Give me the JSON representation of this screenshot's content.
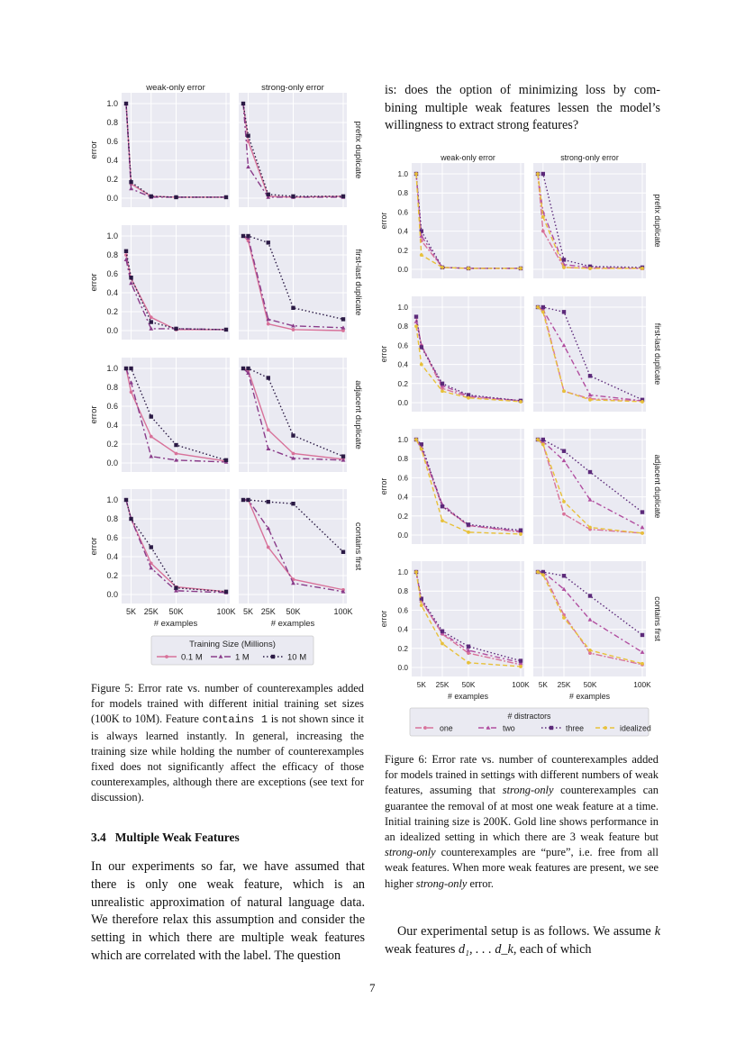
{
  "figure5": {
    "col_titles": [
      "weak-only error",
      "strong-only error"
    ],
    "row_labels": [
      "prefix duplicate",
      "first-last duplicate",
      "adjacent duplicate",
      "contains first"
    ],
    "ylabel": "error",
    "xlabel": "# examples",
    "legend_title": "Training Size (Millions)",
    "legend": [
      "0.1 M",
      "1 M",
      "10 M"
    ]
  },
  "figure6": {
    "col_titles": [
      "weak-only error",
      "strong-only error"
    ],
    "row_labels": [
      "prefix duplicate",
      "first-last duplicate",
      "adjacent duplicate",
      "contains first"
    ],
    "ylabel": "error",
    "xlabel": "# examples",
    "legend_title": "# distractors",
    "legend": [
      "one",
      "two",
      "three",
      "idealized"
    ]
  },
  "chart_data": [
    {
      "type": "line",
      "x_ticks": [
        "5K",
        "25K",
        "50K",
        "100K"
      ],
      "x": [
        0,
        5000,
        25000,
        50000,
        100000
      ],
      "ylim": [
        0,
        1
      ],
      "y_ticks": [
        "0.0",
        "0.2",
        "0.4",
        "0.6",
        "0.8",
        "1.0"
      ],
      "panels": [
        {
          "row": "prefix duplicate",
          "col": "weak-only error",
          "series": [
            {
              "name": "0.1 M",
              "values": [
                1.0,
                0.15,
                0.02,
                0.01,
                0.01
              ]
            },
            {
              "name": "1 M",
              "values": [
                1.0,
                0.1,
                0.01,
                0.01,
                0.01
              ]
            },
            {
              "name": "10 M",
              "values": [
                1.0,
                0.17,
                0.02,
                0.01,
                0.01
              ]
            }
          ]
        },
        {
          "row": "prefix duplicate",
          "col": "strong-only error",
          "series": [
            {
              "name": "0.1 M",
              "values": [
                1.0,
                0.6,
                0.02,
                0.01,
                0.02
              ]
            },
            {
              "name": "1 M",
              "values": [
                1.0,
                0.33,
                0.01,
                0.01,
                0.01
              ]
            },
            {
              "name": "10 M",
              "values": [
                1.0,
                0.66,
                0.04,
                0.02,
                0.02
              ]
            }
          ]
        },
        {
          "row": "first-last duplicate",
          "col": "weak-only error",
          "series": [
            {
              "name": "0.1 M",
              "values": [
                0.8,
                0.55,
                0.14,
                0.01,
                0.01
              ]
            },
            {
              "name": "1 M",
              "values": [
                0.75,
                0.5,
                0.02,
                0.02,
                0.01
              ]
            },
            {
              "name": "10 M",
              "values": [
                0.84,
                0.56,
                0.09,
                0.02,
                0.01
              ]
            }
          ]
        },
        {
          "row": "first-last duplicate",
          "col": "strong-only error",
          "series": [
            {
              "name": "0.1 M",
              "values": [
                1.0,
                0.95,
                0.07,
                0.01,
                0.0
              ]
            },
            {
              "name": "1 M",
              "values": [
                1.0,
                0.98,
                0.12,
                0.05,
                0.03
              ]
            },
            {
              "name": "10 M",
              "values": [
                1.0,
                1.0,
                0.93,
                0.24,
                0.12
              ]
            }
          ]
        },
        {
          "row": "adjacent duplicate",
          "col": "weak-only error",
          "series": [
            {
              "name": "0.1 M",
              "values": [
                1.0,
                0.75,
                0.28,
                0.1,
                0.02
              ]
            },
            {
              "name": "1 M",
              "values": [
                1.0,
                0.85,
                0.07,
                0.03,
                0.01
              ]
            },
            {
              "name": "10 M",
              "values": [
                1.0,
                1.0,
                0.49,
                0.19,
                0.03
              ]
            }
          ]
        },
        {
          "row": "adjacent duplicate",
          "col": "strong-only error",
          "series": [
            {
              "name": "0.1 M",
              "values": [
                1.0,
                0.98,
                0.35,
                0.1,
                0.04
              ]
            },
            {
              "name": "1 M",
              "values": [
                1.0,
                0.95,
                0.15,
                0.05,
                0.03
              ]
            },
            {
              "name": "10 M",
              "values": [
                1.0,
                1.0,
                0.9,
                0.29,
                0.07
              ]
            }
          ]
        },
        {
          "row": "contains first",
          "col": "weak-only error",
          "series": [
            {
              "name": "0.1 M",
              "values": [
                1.0,
                0.8,
                0.33,
                0.08,
                0.03
              ]
            },
            {
              "name": "1 M",
              "values": [
                1.0,
                0.8,
                0.28,
                0.04,
                0.02
              ]
            },
            {
              "name": "10 M",
              "values": [
                1.0,
                0.8,
                0.5,
                0.07,
                0.03
              ]
            }
          ]
        },
        {
          "row": "contains first",
          "col": "strong-only error",
          "series": [
            {
              "name": "0.1 M",
              "values": [
                1.0,
                1.0,
                0.5,
                0.16,
                0.05
              ]
            },
            {
              "name": "1 M",
              "values": [
                1.0,
                1.0,
                0.7,
                0.12,
                0.03
              ]
            },
            {
              "name": "10 M",
              "values": [
                1.0,
                1.0,
                0.98,
                0.96,
                0.45
              ]
            }
          ]
        }
      ]
    },
    {
      "type": "line",
      "x_ticks": [
        "5K",
        "25K",
        "50K",
        "100K"
      ],
      "x": [
        0,
        5000,
        25000,
        50000,
        100000
      ],
      "ylim": [
        0,
        1
      ],
      "y_ticks": [
        "0.0",
        "0.2",
        "0.4",
        "0.6",
        "0.8",
        "1.0"
      ],
      "panels": [
        {
          "row": "prefix duplicate",
          "col": "weak-only error",
          "series": [
            {
              "name": "one",
              "values": [
                1.0,
                0.3,
                0.02,
                0.01,
                0.01
              ]
            },
            {
              "name": "two",
              "values": [
                1.0,
                0.35,
                0.02,
                0.01,
                0.01
              ]
            },
            {
              "name": "three",
              "values": [
                1.0,
                0.4,
                0.02,
                0.01,
                0.01
              ]
            },
            {
              "name": "idealized",
              "values": [
                1.0,
                0.15,
                0.02,
                0.01,
                0.01
              ]
            }
          ]
        },
        {
          "row": "prefix duplicate",
          "col": "strong-only error",
          "series": [
            {
              "name": "one",
              "values": [
                1.0,
                0.4,
                0.02,
                0.01,
                0.01
              ]
            },
            {
              "name": "two",
              "values": [
                1.0,
                0.6,
                0.05,
                0.02,
                0.01
              ]
            },
            {
              "name": "three",
              "values": [
                1.0,
                1.0,
                0.1,
                0.03,
                0.02
              ]
            },
            {
              "name": "idealized",
              "values": [
                1.0,
                0.55,
                0.02,
                0.01,
                0.01
              ]
            }
          ]
        },
        {
          "row": "first-last duplicate",
          "col": "weak-only error",
          "series": [
            {
              "name": "one",
              "values": [
                0.9,
                0.6,
                0.15,
                0.06,
                0.02
              ]
            },
            {
              "name": "two",
              "values": [
                0.85,
                0.6,
                0.18,
                0.07,
                0.02
              ]
            },
            {
              "name": "three",
              "values": [
                0.9,
                0.58,
                0.2,
                0.08,
                0.02
              ]
            },
            {
              "name": "idealized",
              "values": [
                0.8,
                0.4,
                0.12,
                0.05,
                0.01
              ]
            }
          ]
        },
        {
          "row": "first-last duplicate",
          "col": "strong-only error",
          "series": [
            {
              "name": "one",
              "values": [
                1.0,
                0.98,
                0.12,
                0.04,
                0.02
              ]
            },
            {
              "name": "two",
              "values": [
                1.0,
                0.97,
                0.6,
                0.08,
                0.02
              ]
            },
            {
              "name": "three",
              "values": [
                1.0,
                1.0,
                0.95,
                0.28,
                0.03
              ]
            },
            {
              "name": "idealized",
              "values": [
                1.0,
                0.95,
                0.12,
                0.03,
                0.01
              ]
            }
          ]
        },
        {
          "row": "adjacent duplicate",
          "col": "weak-only error",
          "series": [
            {
              "name": "one",
              "values": [
                1.0,
                0.9,
                0.3,
                0.1,
                0.03
              ]
            },
            {
              "name": "two",
              "values": [
                1.0,
                0.92,
                0.32,
                0.1,
                0.04
              ]
            },
            {
              "name": "three",
              "values": [
                1.0,
                0.95,
                0.3,
                0.11,
                0.05
              ]
            },
            {
              "name": "idealized",
              "values": [
                1.0,
                0.9,
                0.15,
                0.03,
                0.01
              ]
            }
          ]
        },
        {
          "row": "adjacent duplicate",
          "col": "strong-only error",
          "series": [
            {
              "name": "one",
              "values": [
                1.0,
                0.95,
                0.22,
                0.06,
                0.02
              ]
            },
            {
              "name": "two",
              "values": [
                1.0,
                0.98,
                0.78,
                0.37,
                0.08
              ]
            },
            {
              "name": "three",
              "values": [
                1.0,
                1.0,
                0.88,
                0.66,
                0.24
              ]
            },
            {
              "name": "idealized",
              "values": [
                1.0,
                0.95,
                0.35,
                0.08,
                0.02
              ]
            }
          ]
        },
        {
          "row": "contains first",
          "col": "weak-only error",
          "series": [
            {
              "name": "one",
              "values": [
                1.0,
                0.7,
                0.35,
                0.15,
                0.03
              ]
            },
            {
              "name": "two",
              "values": [
                1.0,
                0.7,
                0.36,
                0.18,
                0.05
              ]
            },
            {
              "name": "three",
              "values": [
                1.0,
                0.72,
                0.38,
                0.22,
                0.07
              ]
            },
            {
              "name": "idealized",
              "values": [
                1.0,
                0.65,
                0.25,
                0.05,
                0.01
              ]
            }
          ]
        },
        {
          "row": "contains first",
          "col": "strong-only error",
          "series": [
            {
              "name": "one",
              "values": [
                1.0,
                1.0,
                0.55,
                0.15,
                0.03
              ]
            },
            {
              "name": "two",
              "values": [
                1.0,
                1.0,
                0.82,
                0.5,
                0.16
              ]
            },
            {
              "name": "three",
              "values": [
                1.0,
                1.0,
                0.96,
                0.75,
                0.34
              ]
            },
            {
              "name": "idealized",
              "values": [
                1.0,
                0.97,
                0.52,
                0.18,
                0.04
              ]
            }
          ]
        }
      ]
    }
  ],
  "text": {
    "right_intro": [
      "is: does the option of minimizing loss by com-",
      "bining multiple weak features lessen the model’s",
      "willingness to extract strong features?"
    ],
    "fig5_caption": {
      "part1": "Figure 5: Error rate vs. number of counterexamples added for models trained with different initial training set sizes (100K to 10M). Feature",
      "code": "contains 1",
      "part2": "is not shown since it is always learned instantly. In general, increasing the training size while holding the number of counterexamples fixed does not significantly affect the efficacy of those counterexamples, although there are exceptions (see text for discussion)."
    },
    "section_heading": "3.4   Multiple Weak Features",
    "section_body": "In our experiments so far, we have assumed that there is only one weak feature, which is an unrealistic approximation of natural language data. We therefore relax this assumption and consider the setting in which there are multiple weak features which are correlated with the label. The question",
    "fig6_caption": {
      "p1": "Figure 6: Error rate vs. number of counterexamples added for models trained in settings with different numbers of weak features, assuming that",
      "em1": "strong-only",
      "p2": "counterexamples can guarantee the removal of at most one weak feature at a time. Initial training size is 200K. Gold line shows performance in an idealized setting in which there are 3 weak feature but",
      "em2": "strong-only",
      "p3": "counterexamples are “pure”, i.e. free from all weak features. When more weak features are present, we see higher",
      "em3": "strong-only",
      "p4": "error."
    },
    "right_bottom": {
      "p1": "Our experimental setup is as follows. We assume",
      "var": "k",
      "p2": "weak features",
      "math": "d₁, . . . d_k",
      "p3": ", each of which"
    },
    "page_number": "7"
  }
}
